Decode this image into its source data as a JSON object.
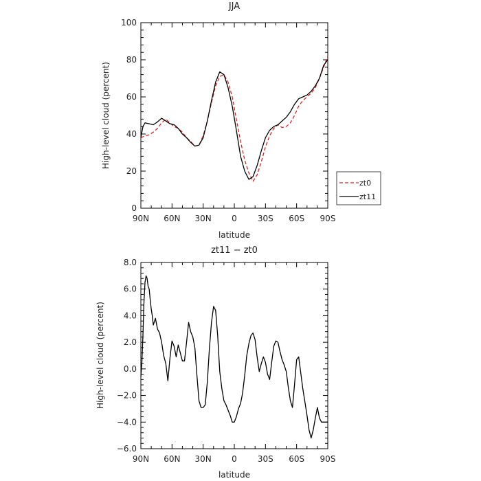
{
  "chart_data": [
    {
      "type": "line",
      "title": "JJA",
      "xlabel": "latitude",
      "ylabel": "High-level cloud (percent)",
      "xlim": [
        90,
        -90
      ],
      "ylim": [
        0,
        100
      ],
      "xticks": [
        90,
        60,
        30,
        0,
        -30,
        -60,
        -90
      ],
      "xtick_labels": [
        "90N",
        "60N",
        "30N",
        "0",
        "30S",
        "60S",
        "90S"
      ],
      "yticks": [
        0,
        20,
        40,
        60,
        80,
        100
      ],
      "ytick_labels": [
        "0",
        "20",
        "40",
        "60",
        "80",
        "100"
      ],
      "legend": {
        "position": "right",
        "entries": [
          "zt0",
          "zt11"
        ]
      },
      "grid": false,
      "series": [
        {
          "name": "zt0",
          "color": "#e0201c",
          "dash": "dashed",
          "x": [
            90,
            86,
            82,
            78,
            74,
            70,
            66,
            62,
            58,
            54,
            50,
            46,
            42,
            38,
            34,
            30,
            26,
            22,
            18,
            14,
            10,
            6,
            2,
            -2,
            -6,
            -10,
            -14,
            -18,
            -22,
            -26,
            -30,
            -34,
            -38,
            -42,
            -46,
            -50,
            -54,
            -58,
            -62,
            -66,
            -70,
            -74,
            -78,
            -82,
            -86,
            -90
          ],
          "y": [
            38,
            39,
            39.5,
            41,
            43,
            46,
            48,
            46,
            44,
            43,
            41,
            38,
            36,
            33.5,
            34,
            39,
            47,
            57,
            66,
            71,
            72,
            68,
            60,
            48,
            36,
            26,
            19,
            14.5,
            18,
            25,
            33,
            39,
            43,
            45,
            43.5,
            44,
            46,
            50,
            55,
            58,
            60,
            62,
            65,
            70,
            76,
            82
          ]
        },
        {
          "name": "zt11",
          "color": "#000000",
          "dash": "solid",
          "x": [
            90,
            88,
            86,
            82,
            78,
            74,
            70,
            66,
            62,
            58,
            54,
            50,
            46,
            42,
            38,
            34,
            30,
            26,
            22,
            18,
            14,
            10,
            6,
            2,
            -2,
            -6,
            -10,
            -14,
            -18,
            -22,
            -26,
            -30,
            -34,
            -38,
            -42,
            -46,
            -50,
            -54,
            -58,
            -62,
            -66,
            -70,
            -74,
            -78,
            -82,
            -86,
            -90
          ],
          "y": [
            38,
            44,
            46,
            45.5,
            45,
            46.5,
            48.5,
            47,
            45.5,
            45,
            43,
            40,
            38,
            35.5,
            33.5,
            34,
            38,
            47,
            58,
            68,
            73.5,
            72,
            65,
            55,
            42,
            28,
            20,
            15.5,
            17,
            23,
            31,
            38,
            42,
            44,
            45,
            47,
            49,
            52,
            56,
            59,
            60,
            61,
            63,
            66,
            70,
            77,
            80
          ]
        }
      ]
    },
    {
      "type": "line",
      "title": "zt11 − zt0",
      "xlabel": "latitude",
      "ylabel": "High-level cloud (percent)",
      "xlim": [
        90,
        -90
      ],
      "ylim": [
        -6,
        8
      ],
      "xticks": [
        90,
        60,
        30,
        0,
        -30,
        -60,
        -90
      ],
      "xtick_labels": [
        "90N",
        "60N",
        "30N",
        "0",
        "30S",
        "60S",
        "90S"
      ],
      "yticks": [
        -6,
        -4,
        -2,
        0,
        2,
        4,
        6,
        8
      ],
      "ytick_labels": [
        "−6.0",
        "−4.0",
        "−2.0",
        "0.0",
        "2.0",
        "4.0",
        "6.0",
        "8.0"
      ],
      "grid": false,
      "series": [
        {
          "color": "#000000",
          "dash": "solid",
          "x": [
            90,
            89,
            88,
            87,
            86,
            85,
            84,
            83,
            82,
            81,
            80,
            79,
            78,
            76,
            74,
            72,
            70,
            68,
            66,
            64,
            62,
            60,
            58,
            56,
            54,
            52,
            50,
            48,
            46,
            44,
            42,
            40,
            38,
            36,
            34,
            32,
            30,
            28,
            26,
            24,
            22,
            20,
            18,
            16,
            14,
            12,
            10,
            8,
            6,
            4,
            2,
            0,
            -2,
            -4,
            -6,
            -8,
            -10,
            -12,
            -14,
            -16,
            -18,
            -20,
            -22,
            -24,
            -26,
            -28,
            -30,
            -32,
            -34,
            -36,
            -38,
            -40,
            -42,
            -44,
            -46,
            -48,
            -50,
            -52,
            -54,
            -56,
            -58,
            -60,
            -62,
            -64,
            -66,
            -68,
            -70,
            -72,
            -74,
            -76,
            -78,
            -80,
            -82,
            -84,
            -86,
            -88,
            -90
          ],
          "y": [
            -0.6,
            0.5,
            2.5,
            5.0,
            6.5,
            7.0,
            6.8,
            6.2,
            6.0,
            5.2,
            4.5,
            4.0,
            3.3,
            3.8,
            3.0,
            2.7,
            2.0,
            1.0,
            0.4,
            -0.9,
            0.8,
            2.1,
            1.7,
            0.9,
            1.8,
            1.2,
            0.6,
            0.6,
            2.0,
            3.5,
            2.8,
            2.4,
            1.6,
            -0.5,
            -2.4,
            -2.9,
            -2.9,
            -2.7,
            -1.0,
            1.5,
            3.5,
            4.7,
            4.4,
            2.5,
            -0.2,
            -1.5,
            -2.4,
            -2.7,
            -3.1,
            -3.5,
            -4.0,
            -4.0,
            -3.6,
            -3.0,
            -2.6,
            -1.8,
            -0.5,
            1.0,
            1.9,
            2.5,
            2.7,
            2.2,
            0.9,
            -0.2,
            0.4,
            0.9,
            0.5,
            -0.4,
            -0.8,
            0.5,
            1.7,
            2.1,
            2.0,
            1.3,
            0.7,
            0.3,
            -0.2,
            -1.4,
            -2.4,
            -2.9,
            -1.2,
            0.7,
            0.9,
            -0.3,
            -1.5,
            -2.5,
            -3.5,
            -4.6,
            -5.2,
            -4.6,
            -3.7,
            -2.9,
            -3.7,
            -4.0,
            -4.0,
            -4.0,
            -4.0
          ]
        }
      ]
    }
  ]
}
